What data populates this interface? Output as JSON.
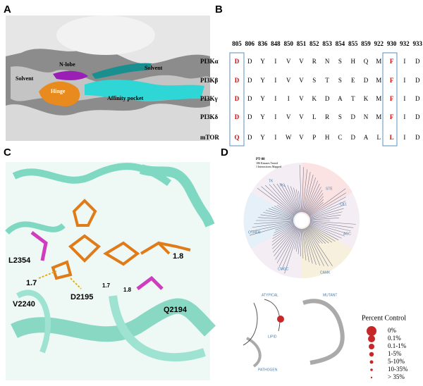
{
  "panels": {
    "a": {
      "label": "A",
      "annotations": [
        "N-lobe",
        "Solvent",
        "Solvent",
        "Hinge",
        "Affinity pocket"
      ]
    },
    "b": {
      "label": "B",
      "table": {
        "header": [
          "805",
          "806",
          "836",
          "848",
          "850",
          "851",
          "852",
          "853",
          "854",
          "855",
          "859",
          "922",
          "930",
          "932",
          "933"
        ],
        "rows": [
          {
            "name": "PI3Kα",
            "cells": [
              "D",
              "D",
              "Y",
              "I",
              "V",
              "V",
              "R",
              "N",
              "S",
              "H",
              "Q",
              "M",
              "F",
              "I",
              "D"
            ]
          },
          {
            "name": "PI3Kβ",
            "cells": [
              "D",
              "D",
              "Y",
              "I",
              "V",
              "V",
              "S",
              "T",
              "S",
              "E",
              "D",
              "M",
              "F",
              "I",
              "D"
            ]
          },
          {
            "name": "PI3Kγ",
            "cells": [
              "D",
              "D",
              "Y",
              "I",
              "I",
              "V",
              "K",
              "D",
              "A",
              "T",
              "K",
              "M",
              "F",
              "I",
              "D"
            ]
          },
          {
            "name": "PI3Kδ",
            "cells": [
              "D",
              "D",
              "Y",
              "I",
              "V",
              "V",
              "L",
              "R",
              "S",
              "D",
              "N",
              "M",
              "F",
              "I",
              "D"
            ]
          },
          {
            "name": "mTOR",
            "cells": [
              "Q",
              "D",
              "Y",
              "I",
              "W",
              "V",
              "P",
              "H",
              "C",
              "D",
              "A",
              "L",
              "L",
              "I",
              "D"
            ]
          }
        ]
      }
    },
    "c": {
      "label": "C",
      "annotations": [
        "L2354",
        "1.7",
        "V2240",
        "D2195",
        "1.7",
        "1.8",
        "1.8",
        "Q2194"
      ]
    },
    "d": {
      "label": "D",
      "title": "PT-88",
      "subtitle": [
        "186 Kinases Tested",
        "1 Interactions Mapped"
      ],
      "groups": [
        "TKL",
        "TK",
        "STE",
        "CK1",
        "AGC",
        "CAMK",
        "CMGC",
        "OTHER",
        "ATYPICAL",
        "MUTANT",
        "LIPID",
        "PATHOGEN"
      ],
      "legend": {
        "title": "Percent Control",
        "entries": [
          "0%",
          "0.1%",
          "0.1-1%",
          "1-5%",
          "5-10%",
          "10-35%",
          "> 35%"
        ]
      }
    }
  }
}
